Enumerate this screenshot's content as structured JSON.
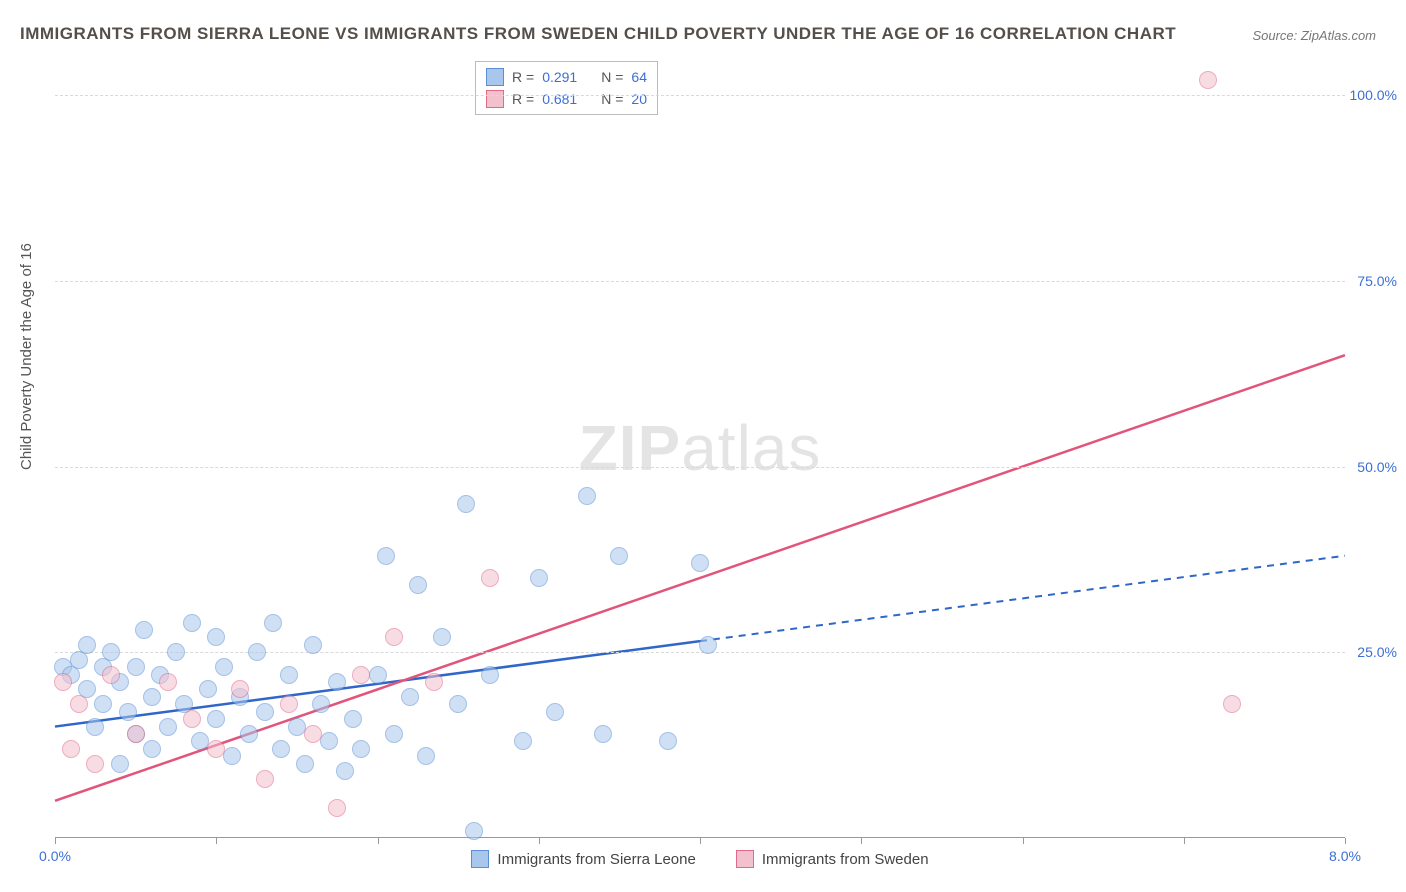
{
  "title": "IMMIGRANTS FROM SIERRA LEONE VS IMMIGRANTS FROM SWEDEN CHILD POVERTY UNDER THE AGE OF 16 CORRELATION CHART",
  "source": "Source: ZipAtlas.com",
  "ylabel": "Child Poverty Under the Age of 16",
  "watermark_bold": "ZIP",
  "watermark_rest": "atlas",
  "chart": {
    "type": "scatter",
    "xlim": [
      0,
      8
    ],
    "ylim": [
      0,
      105
    ],
    "xticks": [
      0,
      1,
      2,
      3,
      4,
      5,
      6,
      7,
      8
    ],
    "xtick_labels_shown": {
      "0": "0.0%",
      "8": "8.0%"
    },
    "yticks": [
      25,
      50,
      75,
      100
    ],
    "ytick_labels": [
      "25.0%",
      "50.0%",
      "75.0%",
      "100.0%"
    ],
    "grid_color": "#d9d9d9",
    "axis_color": "#999999",
    "tick_label_color": "#3b6fd6",
    "background_color": "#ffffff",
    "point_radius": 8,
    "point_opacity": 0.55,
    "series": [
      {
        "name": "Immigrants from Sierra Leone",
        "color_fill": "#a9c6ec",
        "color_stroke": "#5a8fd6",
        "line_color": "#2f66c9",
        "line_dash_after_x": 4.0,
        "R": "0.291",
        "N": "64",
        "trend": {
          "x1": 0,
          "y1": 15,
          "x2": 8,
          "y2": 38
        },
        "points": [
          [
            0.05,
            23
          ],
          [
            0.1,
            22
          ],
          [
            0.15,
            24
          ],
          [
            0.2,
            20
          ],
          [
            0.2,
            26
          ],
          [
            0.25,
            15
          ],
          [
            0.3,
            23
          ],
          [
            0.3,
            18
          ],
          [
            0.35,
            25
          ],
          [
            0.4,
            21
          ],
          [
            0.4,
            10
          ],
          [
            0.45,
            17
          ],
          [
            0.5,
            23
          ],
          [
            0.5,
            14
          ],
          [
            0.55,
            28
          ],
          [
            0.6,
            19
          ],
          [
            0.6,
            12
          ],
          [
            0.65,
            22
          ],
          [
            0.7,
            15
          ],
          [
            0.75,
            25
          ],
          [
            0.8,
            18
          ],
          [
            0.85,
            29
          ],
          [
            0.9,
            13
          ],
          [
            0.95,
            20
          ],
          [
            1.0,
            16
          ],
          [
            1.0,
            27
          ],
          [
            1.05,
            23
          ],
          [
            1.1,
            11
          ],
          [
            1.15,
            19
          ],
          [
            1.2,
            14
          ],
          [
            1.25,
            25
          ],
          [
            1.3,
            17
          ],
          [
            1.35,
            29
          ],
          [
            1.4,
            12
          ],
          [
            1.45,
            22
          ],
          [
            1.5,
            15
          ],
          [
            1.55,
            10
          ],
          [
            1.6,
            26
          ],
          [
            1.65,
            18
          ],
          [
            1.7,
            13
          ],
          [
            1.75,
            21
          ],
          [
            1.8,
            9
          ],
          [
            1.85,
            16
          ],
          [
            1.9,
            12
          ],
          [
            2.0,
            22
          ],
          [
            2.05,
            38
          ],
          [
            2.1,
            14
          ],
          [
            2.2,
            19
          ],
          [
            2.25,
            34
          ],
          [
            2.3,
            11
          ],
          [
            2.4,
            27
          ],
          [
            2.5,
            18
          ],
          [
            2.55,
            45
          ],
          [
            2.6,
            1
          ],
          [
            2.7,
            22
          ],
          [
            2.9,
            13
          ],
          [
            3.0,
            35
          ],
          [
            3.1,
            17
          ],
          [
            3.3,
            46
          ],
          [
            3.4,
            14
          ],
          [
            3.5,
            38
          ],
          [
            3.8,
            13
          ],
          [
            4.0,
            37
          ],
          [
            4.05,
            26
          ]
        ]
      },
      {
        "name": "Immigrants from Sweden",
        "color_fill": "#f3c1cd",
        "color_stroke": "#e06a8a",
        "line_color": "#e1557b",
        "line_dash_after_x": null,
        "R": "0.681",
        "N": "20",
        "trend": {
          "x1": 0,
          "y1": 5,
          "x2": 8,
          "y2": 65
        },
        "points": [
          [
            0.05,
            21
          ],
          [
            0.1,
            12
          ],
          [
            0.15,
            18
          ],
          [
            0.25,
            10
          ],
          [
            0.35,
            22
          ],
          [
            0.5,
            14
          ],
          [
            0.7,
            21
          ],
          [
            0.85,
            16
          ],
          [
            1.0,
            12
          ],
          [
            1.15,
            20
          ],
          [
            1.3,
            8
          ],
          [
            1.45,
            18
          ],
          [
            1.6,
            14
          ],
          [
            1.75,
            4
          ],
          [
            1.9,
            22
          ],
          [
            2.1,
            27
          ],
          [
            2.35,
            21
          ],
          [
            2.7,
            35
          ],
          [
            7.15,
            102
          ],
          [
            7.3,
            18
          ]
        ]
      }
    ]
  },
  "legend_top": {
    "rows": [
      {
        "swatch_fill": "#a9c6ec",
        "swatch_stroke": "#5a8fd6",
        "r_label": "R =",
        "r_val": "0.291",
        "n_label": "N =",
        "n_val": "64"
      },
      {
        "swatch_fill": "#f3c1cd",
        "swatch_stroke": "#e06a8a",
        "r_label": "R =",
        "r_val": "0.681",
        "n_label": "N =",
        "n_val": "20"
      }
    ]
  },
  "legend_bottom": [
    {
      "swatch_fill": "#a9c6ec",
      "swatch_stroke": "#5a8fd6",
      "label": "Immigrants from Sierra Leone"
    },
    {
      "swatch_fill": "#f3c1cd",
      "swatch_stroke": "#e06a8a",
      "label": "Immigrants from Sweden"
    }
  ]
}
